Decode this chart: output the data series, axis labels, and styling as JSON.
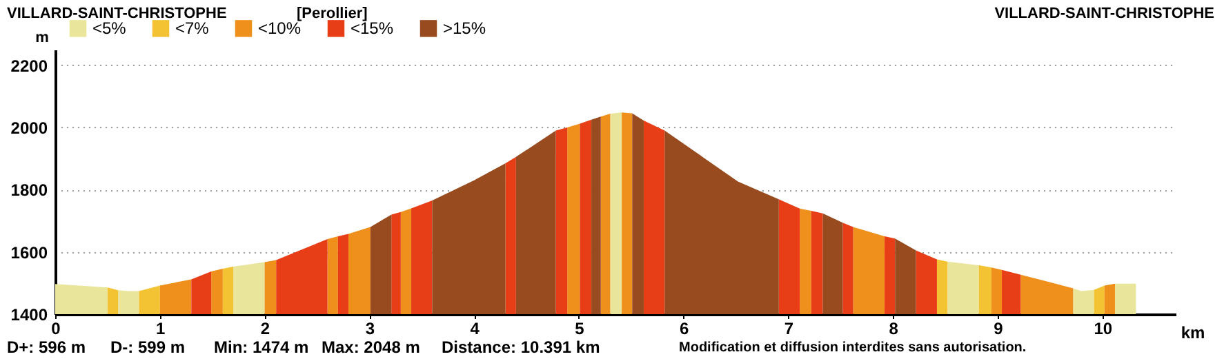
{
  "chart_data": {
    "type": "area",
    "title": "VILLARD-SAINT-CHRISTOPHE",
    "xlabel": "km",
    "ylabel": "m",
    "xlim": [
      0,
      10.7
    ],
    "ylim": [
      1400,
      2250
    ],
    "xticks": [
      0,
      1,
      2,
      3,
      4,
      5,
      6,
      7,
      8,
      9,
      10
    ],
    "yticks": [
      1400,
      1600,
      1800,
      2000,
      2200
    ],
    "grid": "y",
    "legend": "top left",
    "annotations": [
      "[Perollier]",
      "VILLARD-SAINT-CHRISTOPHE",
      "D+: 596 m",
      "D-: 599 m",
      "Min: 1474 m",
      "Max: 2048 m",
      "Distance: 10.391 km",
      "Modification et diffusion interdites sans autorisation."
    ],
    "series": [
      {
        "name": "<5%",
        "color": "#e9e59b",
        "x": [
          0,
          0.5,
          null,
          0.6,
          0.7,
          0.8,
          null,
          1.7,
          2.0,
          null,
          5.3,
          5.41,
          null,
          8.52,
          8.82,
          null,
          9.72,
          9.8,
          9.92,
          null,
          10.12,
          10.32
        ],
        "values": [
          1497,
          1486,
          null,
          1477,
          1474,
          1474,
          null,
          1553,
          1567,
          null,
          2044,
          2048,
          null,
          1569,
          1557,
          null,
          1483,
          1474,
          1478,
          null,
          1498,
          1498
        ]
      },
      {
        "name": "<7%",
        "color": "#f3c333",
        "x": [
          0.5,
          0.6,
          null,
          0.8,
          1.0,
          null,
          1.6,
          1.7,
          null,
          8.42,
          8.52,
          null,
          8.82,
          8.94,
          null,
          9.92,
          10.02
        ],
        "values": [
          1486,
          1477,
          null,
          1474,
          1492,
          null,
          1546,
          1553,
          null,
          1576,
          1569,
          null,
          1557,
          1550,
          null,
          1478,
          1492
        ]
      },
      {
        "name": "<10%",
        "color": "#f0901c",
        "x": [
          1.0,
          1.3,
          null,
          1.49,
          1.6,
          null,
          2.0,
          2.11,
          null,
          2.6,
          2.7,
          null,
          2.8,
          3.01,
          null,
          3.3,
          3.4,
          null,
          4.89,
          5.01,
          null,
          5.21,
          5.3,
          null,
          5.41,
          5.51,
          null,
          7.11,
          7.22,
          null,
          7.62,
          7.92,
          null,
          8.94,
          9.04,
          null,
          9.22,
          9.72,
          null,
          10.02,
          10.12
        ],
        "values": [
          1492,
          1512,
          null,
          1537,
          1546,
          null,
          1567,
          1574,
          null,
          1641,
          1650,
          null,
          1658,
          1680,
          null,
          1728,
          1740,
          null,
          2000,
          2012,
          null,
          2035,
          2044,
          null,
          2048,
          2045,
          null,
          1739,
          1732,
          null,
          1680,
          1650,
          null,
          1550,
          1542,
          null,
          1527,
          1483,
          null,
          1492,
          1498
        ]
      },
      {
        "name": "<15%",
        "color": "#e83e18",
        "x": [
          1.3,
          1.49,
          null,
          2.11,
          2.6,
          null,
          2.7,
          2.8,
          null,
          3.21,
          3.3,
          null,
          3.4,
          3.6,
          null,
          4.3,
          4.4,
          null,
          4.78,
          4.89,
          null,
          5.01,
          5.12,
          null,
          5.62,
          5.82,
          null,
          6.91,
          7.11,
          null,
          7.22,
          7.33,
          null,
          7.52,
          7.62,
          null,
          7.92,
          8.02,
          null,
          8.22,
          8.42,
          null,
          9.04,
          9.22
        ],
        "values": [
          1512,
          1537,
          null,
          1574,
          1641,
          null,
          1650,
          1658,
          null,
          1720,
          1728,
          null,
          1740,
          1765,
          null,
          1885,
          1905,
          null,
          1990,
          2000,
          null,
          2012,
          2025,
          null,
          2022,
          1990,
          null,
          1769,
          1739,
          null,
          1732,
          1724,
          null,
          1694,
          1680,
          null,
          1650,
          1643,
          null,
          1605,
          1576,
          null,
          1542,
          1527
        ]
      },
      {
        "name": ">15%",
        "color": "#984b1f",
        "x": [
          3.01,
          3.21,
          null,
          3.6,
          4.0,
          4.3,
          null,
          4.4,
          4.78,
          null,
          5.12,
          5.21,
          null,
          5.51,
          5.62,
          null,
          5.82,
          6.52,
          6.91,
          null,
          7.33,
          7.52,
          null,
          8.02,
          8.22
        ],
        "values": [
          1680,
          1720,
          null,
          1765,
          1830,
          1885,
          null,
          1905,
          1990,
          null,
          2025,
          2035,
          null,
          2045,
          2022,
          null,
          1990,
          1826,
          1769,
          null,
          1724,
          1694,
          null,
          1643,
          1605
        ]
      }
    ]
  }
}
